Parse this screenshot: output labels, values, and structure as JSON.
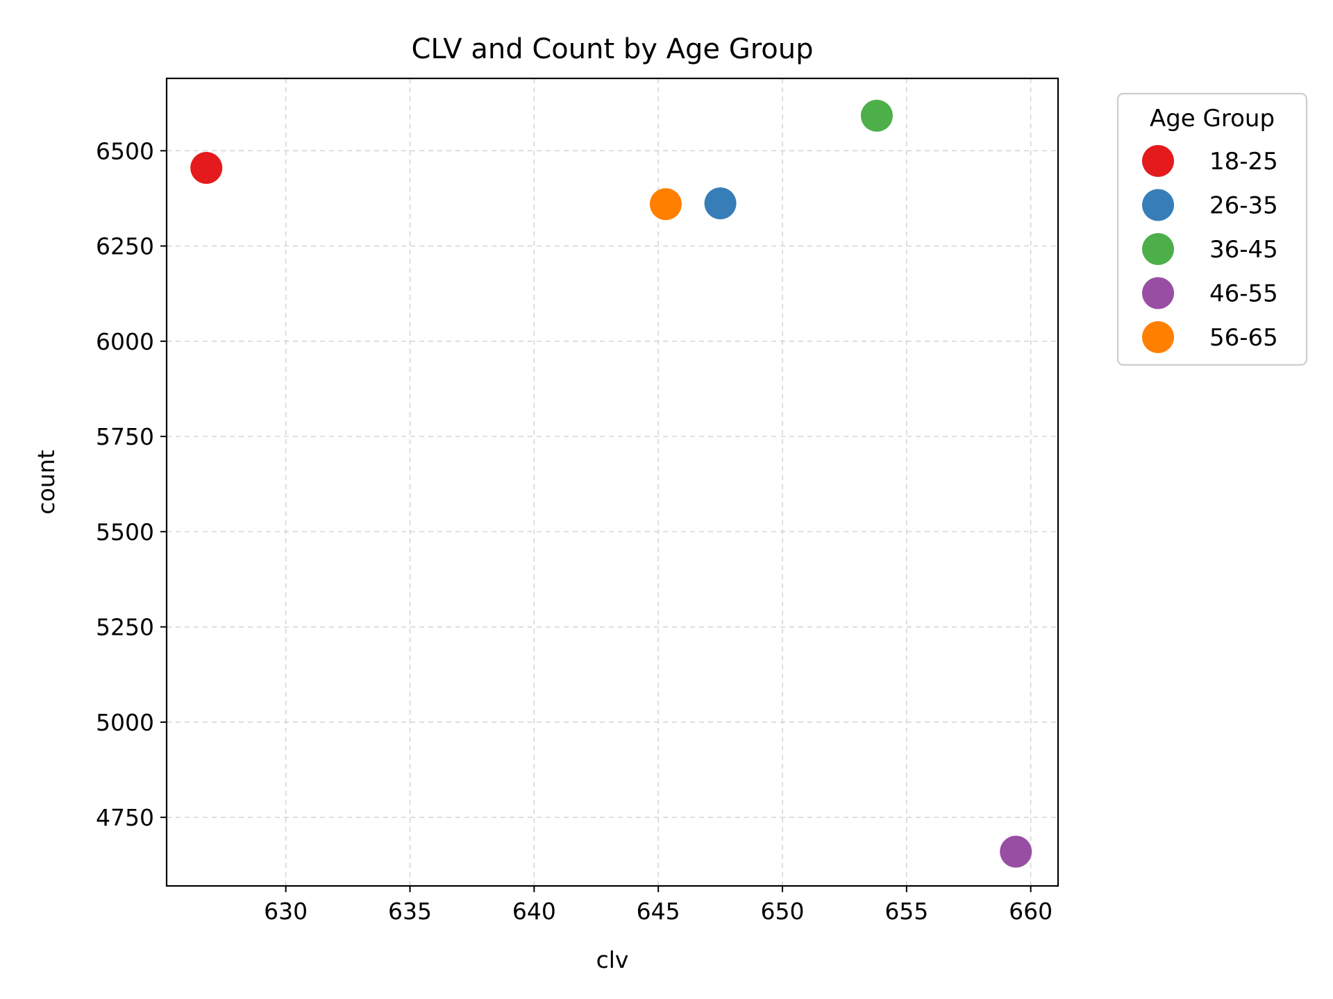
{
  "chart_data": {
    "type": "scatter",
    "title": "CLV and Count by Age Group",
    "xlabel": "clv",
    "ylabel": "count",
    "xlim": [
      625.2,
      661.1
    ],
    "ylim": [
      4570,
      6690
    ],
    "xticks": [
      630,
      635,
      640,
      645,
      650,
      655,
      660
    ],
    "yticks": [
      4750,
      5000,
      5250,
      5500,
      5750,
      6000,
      6250,
      6500
    ],
    "grid": true,
    "legend": {
      "title": "Age Group",
      "placement": "outside-top-right"
    },
    "series": [
      {
        "name": "18-25",
        "color": "#e41a1c",
        "x": [
          626.8
        ],
        "y": [
          6455
        ]
      },
      {
        "name": "26-35",
        "color": "#377eb8",
        "x": [
          647.5
        ],
        "y": [
          6362
        ]
      },
      {
        "name": "36-45",
        "color": "#4daf4a",
        "x": [
          653.8
        ],
        "y": [
          6592
        ]
      },
      {
        "name": "46-55",
        "color": "#984ea3",
        "x": [
          659.4
        ],
        "y": [
          4660
        ]
      },
      {
        "name": "56-65",
        "color": "#ff7f00",
        "x": [
          645.3
        ],
        "y": [
          6360
        ]
      }
    ]
  }
}
